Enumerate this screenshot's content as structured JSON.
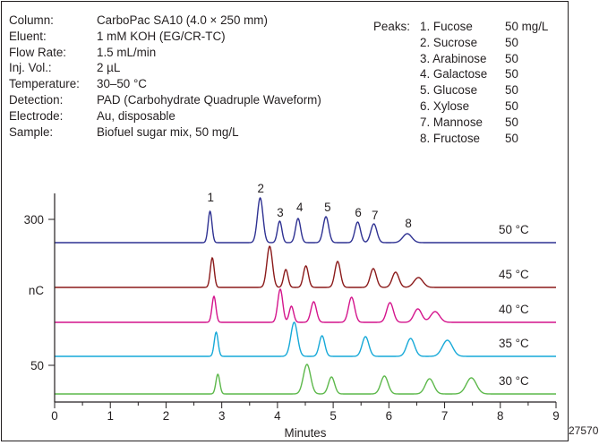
{
  "conditions": [
    {
      "label": "Column:",
      "value": "CarboPac SA10 (4.0 × 250 mm)"
    },
    {
      "label": "Eluent:",
      "value": "1 mM  KOH (EG/CR-TC)"
    },
    {
      "label": "Flow Rate:",
      "value": "1.5 mL/min"
    },
    {
      "label": "Inj. Vol.:",
      "value": "2 µL"
    },
    {
      "label": "Temperature:",
      "value": "30–50 °C"
    },
    {
      "label": "Detection:",
      "value": "PAD (Carbohydrate Quadruple Waveform)"
    },
    {
      "label": "Electrode:",
      "value": "Au, disposable"
    },
    {
      "label": "Sample:",
      "value": "Biofuel sugar mix, 50 mg/L"
    }
  ],
  "peaks_title": "Peaks:",
  "peaks": [
    {
      "name": "1. Fucose",
      "conc": "50 mg/L"
    },
    {
      "name": "2. Sucrose",
      "conc": "50"
    },
    {
      "name": "3. Arabinose",
      "conc": "50"
    },
    {
      "name": "4. Galactose",
      "conc": "50"
    },
    {
      "name": "5. Glucose",
      "conc": "50"
    },
    {
      "name": "6. Xylose",
      "conc": "50"
    },
    {
      "name": "7. Mannose",
      "conc": "50"
    },
    {
      "name": "8. Fructose",
      "conc": "50"
    }
  ],
  "figure_id": "27570",
  "chart_data": {
    "type": "line",
    "xlabel": "Minutes",
    "ylabel": "nC",
    "xlim": [
      0,
      9
    ],
    "x_ticks": [
      "0",
      "1",
      "2",
      "3",
      "4",
      "5",
      "6",
      "7",
      "8",
      "9"
    ],
    "y_tick_labels": [
      "300",
      "nC",
      "50"
    ],
    "peak_labels": [
      {
        "label": "1",
        "time": 2.8
      },
      {
        "label": "2",
        "time": 3.7
      },
      {
        "label": "3",
        "time": 4.05
      },
      {
        "label": "4",
        "time": 4.4
      },
      {
        "label": "5",
        "time": 4.9
      },
      {
        "label": "6",
        "time": 5.45
      },
      {
        "label": "7",
        "time": 5.75
      },
      {
        "label": "8",
        "time": 6.35
      }
    ],
    "series": [
      {
        "name": "50 °C",
        "color": "#2e3192",
        "baseline": 271,
        "peaks": [
          [
            2.79,
            35,
            0.035
          ],
          [
            3.69,
            50,
            0.05
          ],
          [
            4.04,
            24,
            0.04
          ],
          [
            4.37,
            27,
            0.045
          ],
          [
            4.87,
            29,
            0.05
          ],
          [
            5.44,
            23,
            0.05
          ],
          [
            5.73,
            21,
            0.055
          ],
          [
            6.33,
            10,
            0.08
          ]
        ]
      },
      {
        "name": "45 °C",
        "color": "#8b1a1a",
        "baseline": 321,
        "peaks": [
          [
            2.83,
            33,
            0.035
          ],
          [
            3.86,
            46,
            0.05
          ],
          [
            4.15,
            20,
            0.04
          ],
          [
            4.51,
            24,
            0.045
          ],
          [
            5.08,
            29,
            0.05
          ],
          [
            5.72,
            21,
            0.055
          ],
          [
            6.12,
            17,
            0.06
          ],
          [
            6.53,
            11,
            0.08
          ]
        ]
      },
      {
        "name": "40 °C",
        "color": "#d4148c",
        "baseline": 360,
        "peaks": [
          [
            2.86,
            29,
            0.035
          ],
          [
            4.05,
            37,
            0.045
          ],
          [
            4.25,
            18,
            0.04
          ],
          [
            4.65,
            23,
            0.05
          ],
          [
            5.33,
            28,
            0.055
          ],
          [
            6.02,
            22,
            0.06
          ],
          [
            6.52,
            15,
            0.07
          ],
          [
            6.83,
            12,
            0.08
          ]
        ]
      },
      {
        "name": "35 °C",
        "color": "#17a9d8",
        "baseline": 398,
        "peaks": [
          [
            2.9,
            27,
            0.035
          ],
          [
            4.3,
            38,
            0.06
          ],
          [
            4.8,
            23,
            0.05
          ],
          [
            5.58,
            22,
            0.06
          ],
          [
            6.39,
            20,
            0.07
          ],
          [
            7.05,
            18,
            0.09
          ]
        ]
      },
      {
        "name": "30 °C",
        "color": "#5cb84a",
        "baseline": 440,
        "peaks": [
          [
            2.93,
            22,
            0.035
          ],
          [
            4.53,
            33,
            0.065
          ],
          [
            4.97,
            19,
            0.055
          ],
          [
            5.92,
            20,
            0.065
          ],
          [
            6.73,
            17,
            0.075
          ],
          [
            7.48,
            18,
            0.09
          ]
        ]
      }
    ]
  }
}
